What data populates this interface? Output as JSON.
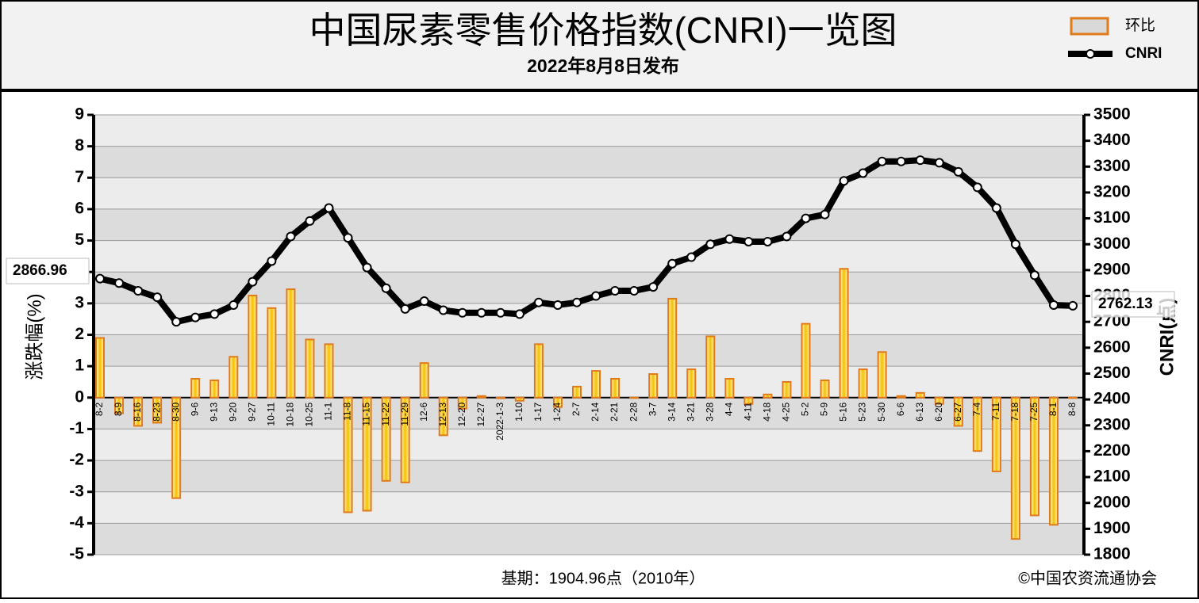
{
  "chart_data": {
    "type": "bar",
    "title": "中国尿素零售价格指数(CNRI)一览图",
    "subtitle": "2022年8月8日发布",
    "y_label": "涨跌幅(%)",
    "y2_label": "CNRI(点)",
    "footnote": "基期：1904.96点（2010年）",
    "source": "©中国农资流通协会",
    "legend": "top-right",
    "grid": true,
    "categories": [
      "8-2",
      "8-9",
      "8-16",
      "8-23",
      "8-30",
      "9-6",
      "9-13",
      "9-20",
      "9-27",
      "10-11",
      "10-18",
      "10-25",
      "11-1",
      "11-8",
      "11-15",
      "11-22",
      "11-29",
      "12-6",
      "12-13",
      "12-20",
      "12-27",
      "2022-1-3",
      "1-10",
      "1-17",
      "1-24",
      "2-7",
      "2-14",
      "2-21",
      "2-28",
      "3-7",
      "3-14",
      "3-21",
      "3-28",
      "4-4",
      "4-11",
      "4-18",
      "4-25",
      "5-2",
      "5-9",
      "5-16",
      "5-23",
      "5-30",
      "6-6",
      "6-13",
      "6-20",
      "6-27",
      "7-4",
      "7-11",
      "7-18",
      "7-25",
      "8-1",
      "8-8"
    ],
    "series": [
      {
        "name": "环比",
        "type": "bar",
        "color": "#f5c000",
        "edge_color": "#e07a1a",
        "values": [
          1.9,
          -0.5,
          -0.9,
          -0.8,
          -3.2,
          0.6,
          0.55,
          1.3,
          3.25,
          2.85,
          3.45,
          1.85,
          1.7,
          -3.65,
          -3.6,
          -2.65,
          -2.7,
          1.1,
          -1.2,
          -0.35,
          0.05,
          -0.02,
          -0.1,
          1.7,
          -0.3,
          0.35,
          0.85,
          0.6,
          0,
          0.75,
          3.15,
          0.9,
          1.95,
          0.6,
          -0.2,
          0.1,
          0.5,
          2.35,
          0.55,
          4.1,
          0.9,
          1.45,
          0.05,
          0.15,
          -0.2,
          -0.9,
          -1.7,
          -2.35,
          -4.5,
          -3.75,
          -4.05,
          0
        ]
      },
      {
        "name": "CNRI",
        "type": "line",
        "axis": "y2",
        "color": "#000000",
        "values": [
          2866.96,
          2850,
          2820,
          2795,
          2700,
          2717,
          2730,
          2765,
          2855,
          2935,
          3030,
          3090,
          3140,
          3025,
          2910,
          2830,
          2750,
          2780,
          2745,
          2735,
          2735,
          2735,
          2730,
          2775,
          2765,
          2775,
          2800,
          2820,
          2820,
          2835,
          2925,
          2950,
          3000,
          3020,
          3010,
          3010,
          3030,
          3100,
          3115,
          3245,
          3275,
          3320,
          3320,
          3325,
          3315,
          3280,
          3220,
          3140,
          3000,
          2880,
          2765,
          2762.13
        ]
      }
    ],
    "ylim": [
      -5,
      9
    ],
    "yticks": [
      -5,
      -4,
      -3,
      -2,
      -1,
      0,
      1,
      2,
      3,
      4,
      5,
      6,
      7,
      8,
      9
    ],
    "y2lim": [
      1800,
      3500
    ],
    "y2ticks": [
      1800,
      1900,
      2000,
      2100,
      2200,
      2300,
      2400,
      2500,
      2600,
      2700,
      2800,
      2900,
      3000,
      3100,
      3200,
      3300,
      3400,
      3500
    ]
  }
}
